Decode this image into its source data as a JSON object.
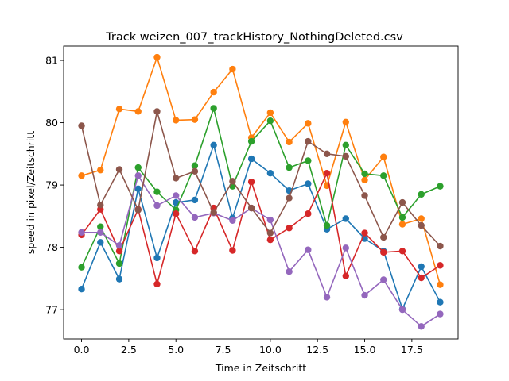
{
  "chart_data": {
    "type": "line",
    "title": "Track weizen_007_trackHistory_NothingDeleted.csv",
    "xlabel": "Time in Zeitschritt",
    "ylabel": "speed in pixel/Zeitschritt",
    "xlim": [
      -0.95,
      19.95
    ],
    "ylim": [
      76.53,
      81.23
    ],
    "xticks": [
      0.0,
      2.5,
      5.0,
      7.5,
      10.0,
      12.5,
      15.0,
      17.5
    ],
    "xtick_labels": [
      "0.0",
      "2.5",
      "5.0",
      "7.5",
      "10.0",
      "12.5",
      "15.0",
      "17.5"
    ],
    "yticks": [
      77,
      78,
      79,
      80,
      81
    ],
    "ytick_labels": [
      "77",
      "78",
      "79",
      "80",
      "81"
    ],
    "grid": false,
    "x": [
      0,
      1,
      2,
      3,
      4,
      5,
      6,
      7,
      8,
      9,
      10,
      11,
      12,
      13,
      14,
      15,
      16,
      17,
      18,
      19
    ],
    "series": [
      {
        "color": "#1f77b4",
        "values": [
          77.33,
          78.08,
          77.49,
          78.94,
          77.83,
          78.72,
          78.76,
          79.64,
          78.47,
          79.42,
          79.19,
          78.91,
          79.02,
          78.29,
          78.46,
          78.14,
          77.94,
          77.01,
          77.69,
          77.12
        ]
      },
      {
        "color": "#ff7f0e",
        "values": [
          79.15,
          79.24,
          80.22,
          80.18,
          81.05,
          80.04,
          80.05,
          80.49,
          80.86,
          79.76,
          80.16,
          79.69,
          79.99,
          78.99,
          80.01,
          79.08,
          79.45,
          78.37,
          78.46,
          77.4
        ]
      },
      {
        "color": "#2ca02c",
        "values": [
          77.68,
          78.33,
          77.74,
          79.28,
          78.89,
          78.6,
          79.31,
          80.23,
          78.98,
          79.7,
          80.03,
          79.28,
          79.39,
          78.35,
          79.64,
          79.18,
          79.15,
          78.48,
          78.85,
          78.98
        ]
      },
      {
        "color": "#d62728",
        "values": [
          78.2,
          78.61,
          77.94,
          78.61,
          77.41,
          78.54,
          77.94,
          78.63,
          77.95,
          79.05,
          78.12,
          78.31,
          78.54,
          79.19,
          77.54,
          78.23,
          77.92,
          77.94,
          77.51,
          77.71
        ]
      },
      {
        "color": "#9467bd",
        "values": [
          78.24,
          78.24,
          78.03,
          79.15,
          78.67,
          78.83,
          78.48,
          78.55,
          78.43,
          78.63,
          78.44,
          77.61,
          77.96,
          77.2,
          77.99,
          77.23,
          77.48,
          77.0,
          76.73,
          76.93
        ]
      },
      {
        "color": "#8c564b",
        "values": [
          79.95,
          78.68,
          79.25,
          78.6,
          80.18,
          79.11,
          79.22,
          78.56,
          79.06,
          78.63,
          78.23,
          78.79,
          79.7,
          79.5,
          79.46,
          78.83,
          78.16,
          78.72,
          78.35,
          78.02
        ]
      }
    ]
  }
}
